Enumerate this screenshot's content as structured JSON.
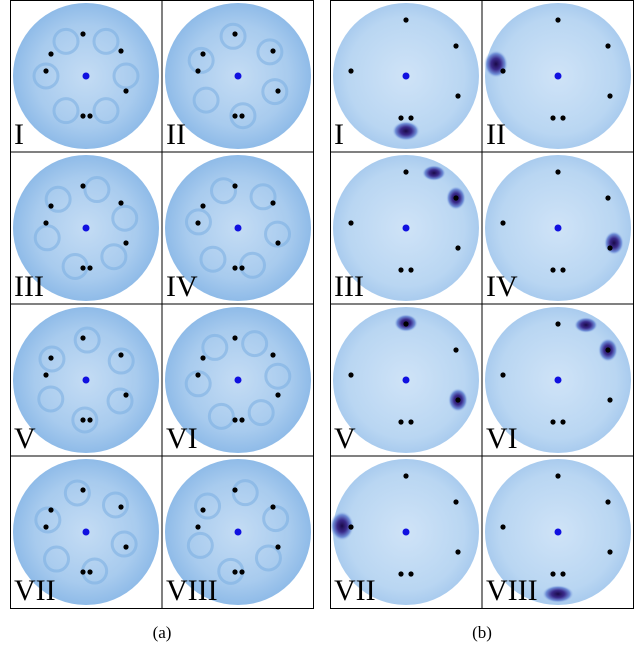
{
  "panels": [
    {
      "caption": "(a)",
      "labels": [
        "I",
        "II",
        "III",
        "IV",
        "V",
        "VI",
        "VII",
        "VIII"
      ]
    },
    {
      "caption": "(b)",
      "labels": [
        "I",
        "II",
        "III",
        "IV",
        "V",
        "VI",
        "VII",
        "VIII"
      ]
    }
  ]
}
